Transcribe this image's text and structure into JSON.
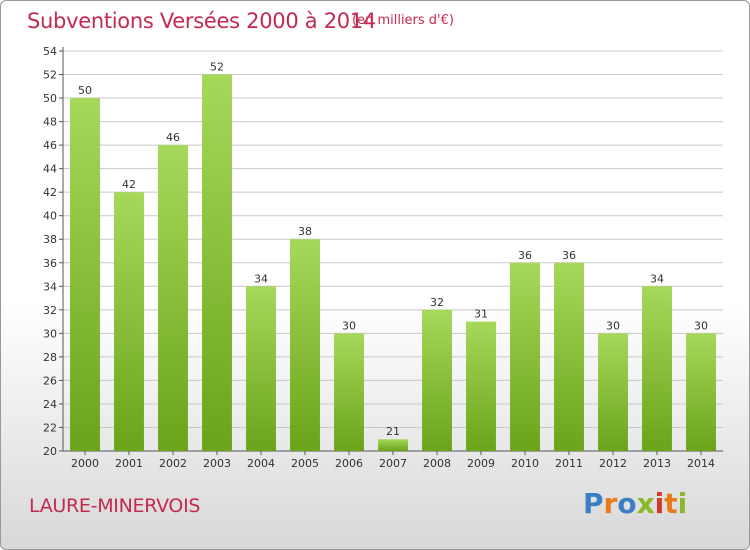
{
  "header": {
    "title": "Subventions Versées 2000 à 2014",
    "subtitle": "(en milliers d'€)"
  },
  "footer": {
    "commune": "LAURE-MINERVOIS",
    "logo_text": "Proxiti"
  },
  "colors": {
    "accent": "#c4294f",
    "bar_light": "#a6d85a",
    "bar_dark": "#6aa41a",
    "grid": "#c8c8c8",
    "logo_letters": [
      "#3a7fc4",
      "#e87a1a",
      "#3a7fc4",
      "#8ab82a",
      "#d03a2a",
      "#e87a1a",
      "#8ab82a"
    ]
  },
  "chart_data": {
    "type": "bar",
    "categories": [
      "2000",
      "2001",
      "2002",
      "2003",
      "2004",
      "2005",
      "2006",
      "2007",
      "2008",
      "2009",
      "2010",
      "2011",
      "2012",
      "2013",
      "2014"
    ],
    "values": [
      50,
      42,
      46,
      52,
      34,
      38,
      30,
      21,
      32,
      31,
      36,
      36,
      30,
      34,
      30
    ],
    "ylim": [
      20,
      54
    ],
    "yticks": [
      20,
      22,
      24,
      26,
      28,
      30,
      32,
      34,
      36,
      38,
      40,
      42,
      44,
      46,
      48,
      50,
      52,
      54
    ],
    "grid": true,
    "legend": false
  }
}
